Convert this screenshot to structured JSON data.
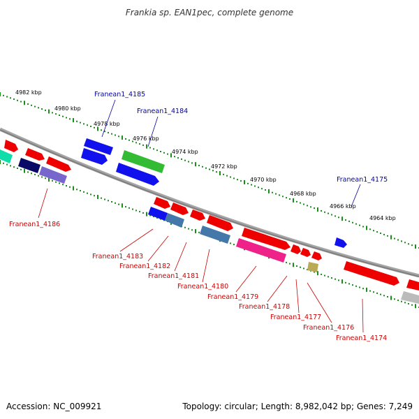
{
  "title": "Frankia sp. EAN1pec, complete genome",
  "footer": {
    "accession": "Accession: NC_009921",
    "summary": "Topology: circular; Length: 8,982,042 bp; Genes: 7,249"
  },
  "colors": {
    "forward_label": "#0000aa",
    "reverse_label": "#cc0000",
    "backbone": "#808080",
    "tick": "#1a8c1a"
  },
  "kbp_labels": [
    "4982 kbp",
    "4980 kbp",
    "4978 kbp",
    "4976 kbp",
    "4974 kbp",
    "4972 kbp",
    "4970 kbp",
    "4968 kbp",
    "4966 kbp",
    "4964 kbp"
  ],
  "forward_labels": [
    "Franean1_4185",
    "Franean1_4184",
    "Franean1_4175"
  ],
  "reverse_labels": [
    "Franean1_4186",
    "Franean1_4183",
    "Franean1_4182",
    "Franean1_4181",
    "Franean1_4180",
    "Franean1_4179",
    "Franean1_4178",
    "Franean1_4177",
    "Franean1_4176",
    "Franean1_4174"
  ]
}
